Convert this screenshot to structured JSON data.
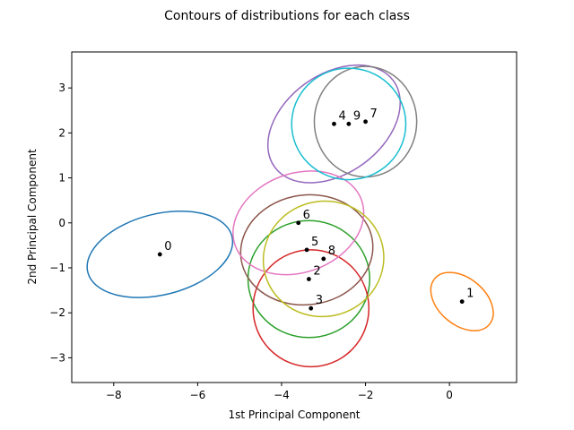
{
  "chart_data": {
    "type": "scatter",
    "title": "Contours of distributions for each class",
    "xlabel": "1st Principal Component",
    "ylabel": "2nd Principal Component",
    "xlim": [
      -9.0,
      1.6
    ],
    "ylim": [
      -3.55,
      3.8
    ],
    "xticks": [
      -8,
      -6,
      -4,
      -2,
      0
    ],
    "yticks": [
      -3,
      -2,
      -1,
      0,
      1,
      2,
      3
    ],
    "grid": false,
    "classes": [
      {
        "name": "0",
        "center": [
          -6.9,
          -0.7
        ],
        "rx": 1.77,
        "ry": 0.9,
        "angle": 14,
        "color": "#1f77b4"
      },
      {
        "name": "1",
        "center": [
          0.3,
          -1.75
        ],
        "rx": 0.85,
        "ry": 0.52,
        "angle": -40,
        "color": "#ff7f0e"
      },
      {
        "name": "2",
        "center": [
          -3.35,
          -1.25
        ],
        "rx": 1.45,
        "ry": 1.3,
        "angle": 0,
        "color": "#2ca02c"
      },
      {
        "name": "3",
        "center": [
          -3.3,
          -1.9
        ],
        "rx": 1.38,
        "ry": 1.3,
        "angle": 0,
        "color": "#d62728"
      },
      {
        "name": "4",
        "center": [
          -2.75,
          2.2
        ],
        "rx": 1.75,
        "ry": 1.1,
        "angle": 36,
        "color": "#9467bd"
      },
      {
        "name": "5",
        "center": [
          -3.4,
          -0.6
        ],
        "rx": 1.58,
        "ry": 1.22,
        "angle": 8,
        "color": "#8c564b"
      },
      {
        "name": "6",
        "center": [
          -3.6,
          0.0
        ],
        "rx": 1.6,
        "ry": 1.1,
        "angle": 20,
        "color": "#e377c2"
      },
      {
        "name": "7",
        "center": [
          -2.0,
          2.25
        ],
        "rx": 1.22,
        "ry": 1.23,
        "angle": 0,
        "color": "#7f7f7f"
      },
      {
        "name": "8",
        "center": [
          -3.0,
          -0.8
        ],
        "rx": 1.44,
        "ry": 1.28,
        "angle": 15,
        "color": "#bcbd22"
      },
      {
        "name": "9",
        "center": [
          -2.4,
          2.2
        ],
        "rx": 1.36,
        "ry": 1.24,
        "angle": 0,
        "color": "#17becf"
      }
    ]
  }
}
